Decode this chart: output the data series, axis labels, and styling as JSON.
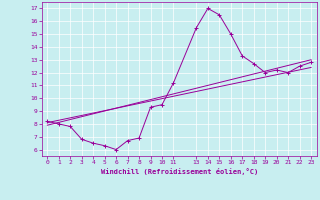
{
  "xlabel": "Windchill (Refroidissement éolien,°C)",
  "bg_color": "#c8eef0",
  "line_color": "#990099",
  "xlim": [
    -0.5,
    23.5
  ],
  "ylim": [
    5.5,
    17.5
  ],
  "xticks": [
    0,
    1,
    2,
    3,
    4,
    5,
    6,
    7,
    8,
    9,
    10,
    11,
    13,
    14,
    15,
    16,
    17,
    18,
    19,
    20,
    21,
    22,
    23
  ],
  "yticks": [
    6,
    7,
    8,
    9,
    10,
    11,
    12,
    13,
    14,
    15,
    16,
    17
  ],
  "curve1_x": [
    0,
    1,
    2,
    3,
    4,
    5,
    6,
    7,
    8,
    9,
    10,
    11,
    13,
    14,
    15,
    16,
    17,
    18,
    19,
    20,
    21,
    22,
    23
  ],
  "curve1_y": [
    8.2,
    8.0,
    7.8,
    6.8,
    6.5,
    6.3,
    6.0,
    6.7,
    6.9,
    9.3,
    9.5,
    11.2,
    15.5,
    17.0,
    16.5,
    15.0,
    13.3,
    12.7,
    12.0,
    12.2,
    12.0,
    12.5,
    12.8
  ],
  "line2_x": [
    0,
    23
  ],
  "line2_y": [
    8.1,
    12.4
  ],
  "line3_x": [
    0,
    23
  ],
  "line3_y": [
    7.9,
    13.0
  ]
}
